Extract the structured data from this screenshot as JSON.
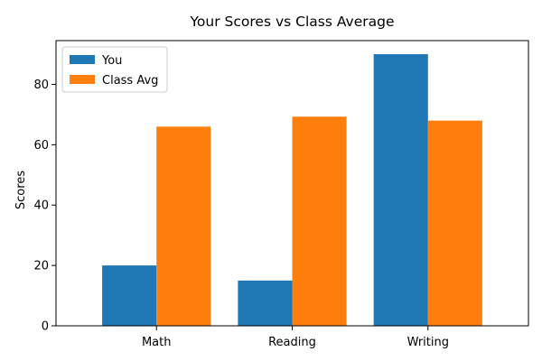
{
  "chart_data": {
    "type": "bar",
    "title": "Your Scores vs Class Average",
    "xlabel": "",
    "ylabel": "Scores",
    "categories": [
      "Math",
      "Reading",
      "Writing"
    ],
    "series": [
      {
        "name": "You",
        "values": [
          20,
          15,
          90
        ],
        "color": "#1f77b4"
      },
      {
        "name": "Class Avg",
        "values": [
          66,
          69.3,
          68
        ],
        "color": "#ff7f0e"
      }
    ],
    "ylim": [
      0,
      94.5
    ],
    "yticks": [
      0,
      20,
      40,
      60,
      80
    ],
    "grid": false,
    "legend": "top-left"
  }
}
